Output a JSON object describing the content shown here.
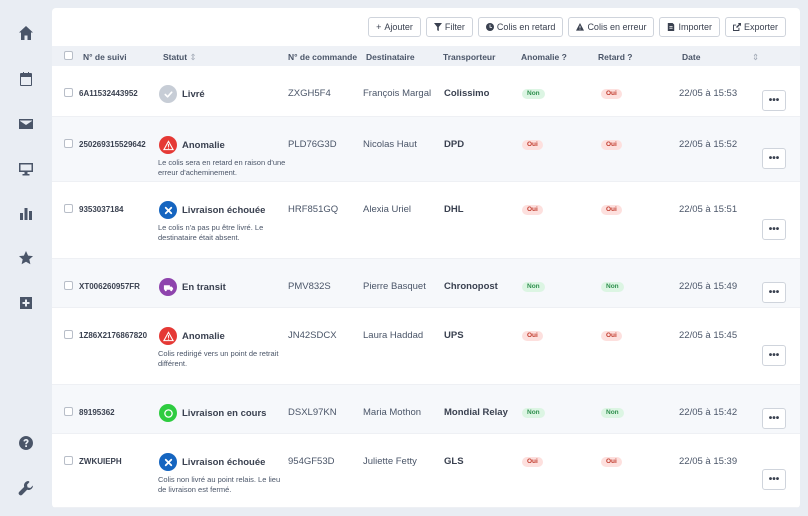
{
  "toolbar": {
    "add_label": "Ajouter",
    "filter_label": "Filter",
    "late_label": "Colis en retard",
    "error_label": "Colis en erreur",
    "import_label": "Importer",
    "export_label": "Exporter"
  },
  "columns": {
    "tracking": "N° de suivi",
    "status": "Statut",
    "order": "N° de commande",
    "recipient": "Destinataire",
    "carrier": "Transporteur",
    "anomaly": "Anomalie ?",
    "delay": "Retard ?",
    "date": "Date"
  },
  "sort_glyph": "⇕",
  "more_label": "•••",
  "colors": {
    "delivered": "#c7cdd6",
    "anomaly": "#e53935",
    "failed": "#1565c0",
    "transit": "#8e44ad",
    "in_progress": "#2ecc40",
    "badge_yes_bg": "#fde0de",
    "badge_no_bg": "#dcf5e3"
  },
  "sidebar": {
    "icons": [
      "home-icon",
      "calendar-icon",
      "mail-icon",
      "monitor-icon",
      "bar-chart-icon",
      "star-icon",
      "add-box-icon",
      "help-icon",
      "wrench-icon"
    ]
  },
  "rows": [
    {
      "tracking": "6A11532443952",
      "status": "Livré",
      "status_type": "delivered",
      "desc": "",
      "order": "ZXGH5F4",
      "recipient": "François Margal",
      "carrier": "Colissimo",
      "anomaly": "Non",
      "delay": "Oui",
      "date": "22/05 à 15:53"
    },
    {
      "tracking": "250269315529642",
      "status": "Anomalie",
      "status_type": "anomaly",
      "desc": "Le colis sera en retard en raison d'une erreur d'acheminement.",
      "order": "PLD76G3D",
      "recipient": "Nicolas Haut",
      "carrier": "DPD",
      "anomaly": "Oui",
      "delay": "Oui",
      "date": "22/05 à 15:52"
    },
    {
      "tracking": "9353037184",
      "status": "Livraison échouée",
      "status_type": "failed",
      "desc": "Le colis n'a pas pu être livré. Le destinataire était absent.",
      "order": "HRF851GQ",
      "recipient": "Alexia Uriel",
      "carrier": "DHL",
      "anomaly": "Oui",
      "delay": "Oui",
      "date": "22/05 à 15:51"
    },
    {
      "tracking": "XT006260957FR",
      "status": "En transit",
      "status_type": "transit",
      "desc": "",
      "order": "PMV832S",
      "recipient": "Pierre Basquet",
      "carrier": "Chronopost",
      "anomaly": "Non",
      "delay": "Non",
      "date": "22/05 à 15:49"
    },
    {
      "tracking": "1Z86X2176867820",
      "status": "Anomalie",
      "status_type": "anomaly",
      "desc": "Colis redirigé vers un point de retrait différent.",
      "order": "JN42SDCX",
      "recipient": "Laura Haddad",
      "carrier": "UPS",
      "anomaly": "Oui",
      "delay": "Oui",
      "date": "22/05 à 15:45"
    },
    {
      "tracking": "89195362",
      "status": "Livraison en cours",
      "status_type": "in_progress",
      "desc": "",
      "order": "DSXL97KN",
      "recipient": "Maria Mothon",
      "carrier": "Mondial Relay",
      "anomaly": "Non",
      "delay": "Non",
      "date": "22/05 à 15:42"
    },
    {
      "tracking": "ZWKUIEPH",
      "status": "Livraison échouée",
      "status_type": "failed",
      "desc": "Colis non livré au point relais. Le lieu de livraison est fermé.",
      "order": "954GF53D",
      "recipient": "Juliette Fetty",
      "carrier": "GLS",
      "anomaly": "Oui",
      "delay": "Oui",
      "date": "22/05 à 15:39"
    }
  ]
}
